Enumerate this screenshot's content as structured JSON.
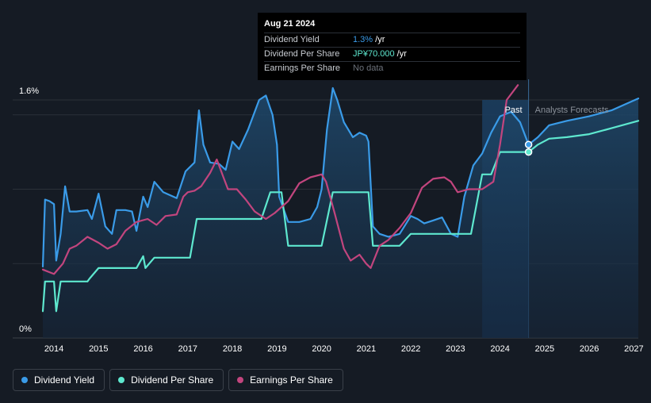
{
  "chart_data": {
    "type": "line",
    "y_axis": {
      "min_label": "0%",
      "max_label": "1.6%",
      "ylim": [
        0,
        1.6
      ]
    },
    "x_ticks": [
      "2014",
      "2015",
      "2016",
      "2017",
      "2018",
      "2019",
      "2020",
      "2021",
      "2022",
      "2023",
      "2024",
      "2025",
      "2026",
      "2027"
    ],
    "xlim": [
      2013.75,
      2027.1
    ],
    "regions": {
      "past_label": "Past",
      "forecast_label": "Analysts Forecasts",
      "past_start": 2023.6,
      "past_end": 2024.64
    },
    "series": [
      {
        "name": "Dividend Yield",
        "color": "#3a9be8",
        "points": [
          [
            2013.75,
            0.48
          ],
          [
            2013.8,
            0.93
          ],
          [
            2013.9,
            0.92
          ],
          [
            2014.0,
            0.9
          ],
          [
            2014.05,
            0.52
          ],
          [
            2014.15,
            0.7
          ],
          [
            2014.25,
            1.02
          ],
          [
            2014.35,
            0.85
          ],
          [
            2014.5,
            0.85
          ],
          [
            2014.75,
            0.86
          ],
          [
            2014.85,
            0.8
          ],
          [
            2015.0,
            0.97
          ],
          [
            2015.15,
            0.75
          ],
          [
            2015.3,
            0.7
          ],
          [
            2015.4,
            0.86
          ],
          [
            2015.6,
            0.86
          ],
          [
            2015.75,
            0.85
          ],
          [
            2015.85,
            0.72
          ],
          [
            2016.0,
            0.95
          ],
          [
            2016.1,
            0.88
          ],
          [
            2016.25,
            1.05
          ],
          [
            2016.45,
            0.98
          ],
          [
            2016.75,
            0.94
          ],
          [
            2016.95,
            1.12
          ],
          [
            2017.15,
            1.18
          ],
          [
            2017.25,
            1.53
          ],
          [
            2017.35,
            1.3
          ],
          [
            2017.5,
            1.18
          ],
          [
            2017.7,
            1.17
          ],
          [
            2017.85,
            1.13
          ],
          [
            2018.0,
            1.32
          ],
          [
            2018.15,
            1.27
          ],
          [
            2018.35,
            1.4
          ],
          [
            2018.6,
            1.6
          ],
          [
            2018.75,
            1.63
          ],
          [
            2018.9,
            1.5
          ],
          [
            2019.0,
            1.3
          ],
          [
            2019.05,
            0.95
          ],
          [
            2019.25,
            0.78
          ],
          [
            2019.5,
            0.78
          ],
          [
            2019.75,
            0.8
          ],
          [
            2019.9,
            0.88
          ],
          [
            2020.0,
            1.0
          ],
          [
            2020.12,
            1.4
          ],
          [
            2020.25,
            1.68
          ],
          [
            2020.35,
            1.6
          ],
          [
            2020.5,
            1.45
          ],
          [
            2020.7,
            1.35
          ],
          [
            2020.85,
            1.38
          ],
          [
            2021.0,
            1.36
          ],
          [
            2021.05,
            1.32
          ],
          [
            2021.15,
            0.75
          ],
          [
            2021.3,
            0.7
          ],
          [
            2021.5,
            0.68
          ],
          [
            2021.75,
            0.7
          ],
          [
            2022.0,
            0.82
          ],
          [
            2022.15,
            0.8
          ],
          [
            2022.3,
            0.77
          ],
          [
            2022.5,
            0.79
          ],
          [
            2022.7,
            0.81
          ],
          [
            2022.9,
            0.7
          ],
          [
            2023.05,
            0.68
          ],
          [
            2023.2,
            0.95
          ],
          [
            2023.4,
            1.16
          ],
          [
            2023.6,
            1.24
          ],
          [
            2023.8,
            1.38
          ],
          [
            2024.0,
            1.49
          ],
          [
            2024.25,
            1.52
          ],
          [
            2024.45,
            1.45
          ],
          [
            2024.64,
            1.3
          ],
          [
            2024.85,
            1.35
          ],
          [
            2025.1,
            1.43
          ],
          [
            2025.5,
            1.46
          ],
          [
            2026.0,
            1.49
          ],
          [
            2026.5,
            1.53
          ],
          [
            2027.1,
            1.61
          ]
        ]
      },
      {
        "name": "Dividend Per Share",
        "color": "#5ee8cf",
        "points": [
          [
            2013.75,
            0.18
          ],
          [
            2013.8,
            0.38
          ],
          [
            2014.0,
            0.38
          ],
          [
            2014.05,
            0.18
          ],
          [
            2014.15,
            0.38
          ],
          [
            2014.5,
            0.38
          ],
          [
            2014.75,
            0.38
          ],
          [
            2014.8,
            0.4
          ],
          [
            2015.0,
            0.47
          ],
          [
            2015.5,
            0.47
          ],
          [
            2015.85,
            0.47
          ],
          [
            2016.0,
            0.55
          ],
          [
            2016.05,
            0.47
          ],
          [
            2016.25,
            0.54
          ],
          [
            2016.5,
            0.54
          ],
          [
            2016.9,
            0.54
          ],
          [
            2017.05,
            0.54
          ],
          [
            2017.2,
            0.8
          ],
          [
            2017.5,
            0.8
          ],
          [
            2017.85,
            0.8
          ],
          [
            2018.0,
            0.8
          ],
          [
            2018.5,
            0.8
          ],
          [
            2018.65,
            0.8
          ],
          [
            2018.85,
            0.98
          ],
          [
            2019.0,
            0.98
          ],
          [
            2019.1,
            0.98
          ],
          [
            2019.25,
            0.62
          ],
          [
            2019.5,
            0.62
          ],
          [
            2019.75,
            0.62
          ],
          [
            2019.85,
            0.62
          ],
          [
            2020.0,
            0.62
          ],
          [
            2020.25,
            0.98
          ],
          [
            2020.5,
            0.98
          ],
          [
            2021.0,
            0.98
          ],
          [
            2021.05,
            0.98
          ],
          [
            2021.15,
            0.62
          ],
          [
            2021.5,
            0.62
          ],
          [
            2021.75,
            0.62
          ],
          [
            2022.0,
            0.7
          ],
          [
            2022.5,
            0.7
          ],
          [
            2022.75,
            0.7
          ],
          [
            2023.0,
            0.7
          ],
          [
            2023.35,
            0.7
          ],
          [
            2023.6,
            1.1
          ],
          [
            2023.8,
            1.1
          ],
          [
            2024.0,
            1.25
          ],
          [
            2024.2,
            1.25
          ],
          [
            2024.64,
            1.25
          ],
          [
            2024.85,
            1.3
          ],
          [
            2025.1,
            1.34
          ],
          [
            2025.5,
            1.35
          ],
          [
            2026.0,
            1.37
          ],
          [
            2026.5,
            1.41
          ],
          [
            2027.1,
            1.46
          ]
        ]
      },
      {
        "name": "Earnings Per Share",
        "color": "#c2457e",
        "points": [
          [
            2013.75,
            0.46
          ],
          [
            2014.0,
            0.43
          ],
          [
            2014.2,
            0.5
          ],
          [
            2014.35,
            0.6
          ],
          [
            2014.5,
            0.62
          ],
          [
            2014.75,
            0.68
          ],
          [
            2015.0,
            0.64
          ],
          [
            2015.2,
            0.6
          ],
          [
            2015.4,
            0.63
          ],
          [
            2015.6,
            0.72
          ],
          [
            2015.85,
            0.78
          ],
          [
            2016.1,
            0.8
          ],
          [
            2016.3,
            0.76
          ],
          [
            2016.5,
            0.82
          ],
          [
            2016.75,
            0.83
          ],
          [
            2016.9,
            0.95
          ],
          [
            2017.0,
            0.98
          ],
          [
            2017.15,
            0.99
          ],
          [
            2017.3,
            1.02
          ],
          [
            2017.5,
            1.11
          ],
          [
            2017.65,
            1.2
          ],
          [
            2017.8,
            1.08
          ],
          [
            2017.9,
            1.0
          ],
          [
            2018.1,
            1.0
          ],
          [
            2018.3,
            0.93
          ],
          [
            2018.5,
            0.85
          ],
          [
            2018.75,
            0.8
          ],
          [
            2018.95,
            0.84
          ],
          [
            2019.25,
            0.92
          ],
          [
            2019.5,
            1.04
          ],
          [
            2019.75,
            1.08
          ],
          [
            2020.0,
            1.1
          ],
          [
            2020.1,
            1.05
          ],
          [
            2020.3,
            0.83
          ],
          [
            2020.5,
            0.6
          ],
          [
            2020.65,
            0.52
          ],
          [
            2020.85,
            0.56
          ],
          [
            2021.0,
            0.5
          ],
          [
            2021.1,
            0.47
          ],
          [
            2021.3,
            0.62
          ],
          [
            2021.5,
            0.66
          ],
          [
            2021.75,
            0.74
          ],
          [
            2022.0,
            0.84
          ],
          [
            2022.25,
            1.01
          ],
          [
            2022.5,
            1.07
          ],
          [
            2022.75,
            1.08
          ],
          [
            2022.9,
            1.05
          ],
          [
            2023.05,
            0.98
          ],
          [
            2023.3,
            1.0
          ],
          [
            2023.6,
            1.0
          ],
          [
            2023.85,
            1.05
          ],
          [
            2024.0,
            1.3
          ],
          [
            2024.15,
            1.6
          ],
          [
            2024.4,
            1.7
          ]
        ]
      }
    ],
    "markers": [
      {
        "series": "Dividend Yield",
        "x": 2024.64,
        "y": 1.3
      },
      {
        "series": "Dividend Per Share",
        "x": 2024.64,
        "y": 1.25
      }
    ]
  },
  "tooltip": {
    "date": "Aug 21 2024",
    "rows": [
      {
        "label": "Dividend Yield",
        "value": "1.3%",
        "unit": " /yr"
      },
      {
        "label": "Dividend Per Share",
        "value": "JP¥70.000",
        "unit": " /yr"
      },
      {
        "label": "Earnings Per Share",
        "value": "No data",
        "unit": ""
      }
    ]
  },
  "legend": [
    {
      "label": "Dividend Yield",
      "color": "#3a9be8"
    },
    {
      "label": "Dividend Per Share",
      "color": "#5ee8cf"
    },
    {
      "label": "Earnings Per Share",
      "color": "#c2457e"
    }
  ],
  "colors": {
    "background": "#151b24",
    "grid": "#2a3038",
    "past_band": "#173452",
    "forecast_text": "#8a9099"
  }
}
